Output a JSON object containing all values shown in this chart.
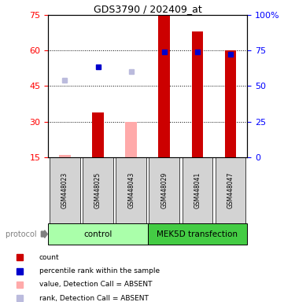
{
  "title": "GDS3790 / 202409_at",
  "samples": [
    "GSM448023",
    "GSM448025",
    "GSM448043",
    "GSM448029",
    "GSM448041",
    "GSM448047"
  ],
  "ylim_left": [
    15,
    75
  ],
  "ylim_right": [
    0,
    100
  ],
  "yticks_left": [
    15,
    30,
    45,
    60,
    75
  ],
  "yticks_right": [
    0,
    25,
    50,
    75,
    100
  ],
  "bar_values": [
    15.8,
    34.0,
    30.0,
    75.0,
    68.0,
    60.0
  ],
  "bar_absent": [
    true,
    false,
    true,
    false,
    false,
    false
  ],
  "rank_values": [
    47.5,
    53.0,
    51.0,
    59.5,
    59.5,
    58.5
  ],
  "rank_absent": [
    true,
    false,
    true,
    false,
    false,
    false
  ],
  "bar_color_present": "#cc0000",
  "bar_color_absent": "#ffaaaa",
  "rank_color_present": "#0000cc",
  "rank_color_absent": "#bbbbdd",
  "bar_width": 0.35,
  "group_control_color": "#aaffaa",
  "group_mek_color": "#44cc44",
  "group_label_control": "control",
  "group_label_mek": "MEK5D transfection",
  "protocol_label": "protocol",
  "legend_items": [
    {
      "label": "count",
      "color": "#cc0000"
    },
    {
      "label": "percentile rank within the sample",
      "color": "#0000cc"
    },
    {
      "label": "value, Detection Call = ABSENT",
      "color": "#ffaaaa"
    },
    {
      "label": "rank, Detection Call = ABSENT",
      "color": "#bbbbdd"
    }
  ]
}
